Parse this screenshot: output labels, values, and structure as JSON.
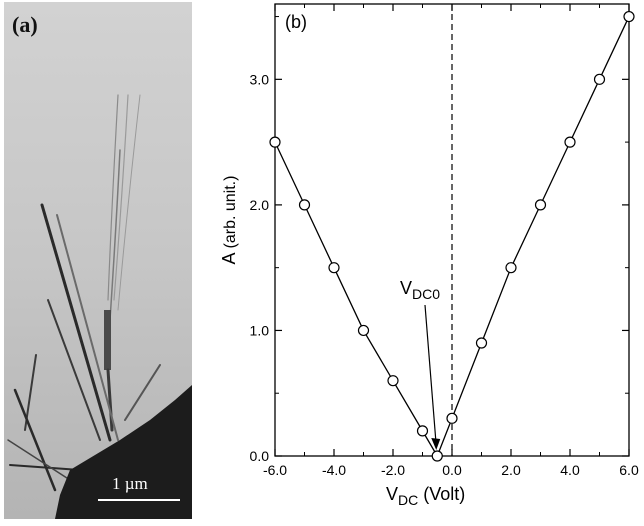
{
  "panel_a": {
    "label": "(a)",
    "scale_bar_label": "1 µm"
  },
  "chart_data": {
    "type": "scatter",
    "panel_label": "(b)",
    "ylabel_main": "A",
    "ylabel_unit": "(arb. unit.)",
    "xlabel_main": "V",
    "xlabel_sub": "DC",
    "xlabel_unit": "(Volt)",
    "annotation": {
      "main": "V",
      "sub": "DC0"
    },
    "xlim": [
      -6.0,
      6.0
    ],
    "ylim": [
      0.0,
      3.6
    ],
    "xticks": [
      -6.0,
      -4.0,
      -2.0,
      0.0,
      2.0,
      4.0,
      6.0
    ],
    "xtick_labels": [
      "-6.0",
      "-4.0",
      "-2.0",
      "0.0",
      "2.0",
      "4.0",
      "6.0"
    ],
    "yticks": [
      0.0,
      1.0,
      2.0,
      3.0
    ],
    "ytick_labels": [
      "0.0",
      "1.0",
      "2.0",
      "3.0"
    ],
    "dashed_vline_x": 0.0,
    "grid": false,
    "marker": "open-circle",
    "series": [
      {
        "x": [
          -6.0,
          -5.0,
          -4.0,
          -3.0,
          -2.0,
          -1.0,
          -0.5,
          0.0,
          1.0,
          2.0,
          3.0,
          4.0,
          5.0,
          6.0
        ],
        "y": [
          2.5,
          2.0,
          1.5,
          1.0,
          0.6,
          0.2,
          0.0,
          0.3,
          0.9,
          1.5,
          2.0,
          2.5,
          3.0,
          3.5
        ]
      }
    ]
  }
}
